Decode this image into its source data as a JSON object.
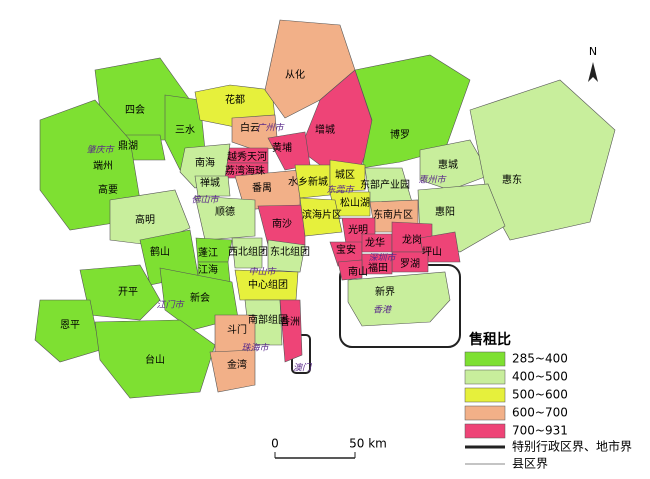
{
  "regions": [
    {
      "name": "四会",
      "class": 0
    },
    {
      "name": "鼎湖",
      "class": 0
    },
    {
      "name": "端州",
      "class": 0
    },
    {
      "name": "高要",
      "class": 0
    },
    {
      "name": "三水",
      "class": 0
    },
    {
      "name": "花都",
      "class": 2
    },
    {
      "name": "从化",
      "class": 3
    },
    {
      "name": "增城",
      "class": 4
    },
    {
      "name": "白云",
      "class": 3
    },
    {
      "name": "黄埔",
      "class": 4
    },
    {
      "name": "越秀天河",
      "class": 4
    },
    {
      "name": "荔湾海珠",
      "class": 4
    },
    {
      "name": "番禺",
      "class": 3
    },
    {
      "name": "南沙",
      "class": 4
    },
    {
      "name": "南海",
      "class": 1
    },
    {
      "name": "禅城",
      "class": 1
    },
    {
      "name": "顺德",
      "class": 1
    },
    {
      "name": "高明",
      "class": 1
    },
    {
      "name": "鹤山",
      "class": 0
    },
    {
      "name": "蓬江",
      "class": 0
    },
    {
      "name": "江海",
      "class": 0
    },
    {
      "name": "西北组团",
      "class": 1
    },
    {
      "name": "东北组团",
      "class": 1
    },
    {
      "name": "中心组团",
      "class": 2
    },
    {
      "name": "南部组团",
      "class": 1
    },
    {
      "name": "开平",
      "class": 0
    },
    {
      "name": "新会",
      "class": 0
    },
    {
      "name": "恩平",
      "class": 0
    },
    {
      "name": "台山",
      "class": 0
    },
    {
      "name": "斗门",
      "class": 3
    },
    {
      "name": "金湾",
      "class": 3
    },
    {
      "name": "香洲",
      "class": 4
    },
    {
      "name": "博罗",
      "class": 0
    },
    {
      "name": "惠城",
      "class": 1
    },
    {
      "name": "惠东",
      "class": 1
    },
    {
      "name": "惠阳",
      "class": 1
    },
    {
      "name": "水乡新城",
      "class": 2
    },
    {
      "name": "城区",
      "class": 2
    },
    {
      "name": "东部产业园",
      "class": 1
    },
    {
      "name": "松山湖",
      "class": 2
    },
    {
      "name": "滨海片区",
      "class": 2
    },
    {
      "name": "东南片区",
      "class": 3
    },
    {
      "name": "光明",
      "class": 4
    },
    {
      "name": "宝安",
      "class": 4
    },
    {
      "name": "龙华",
      "class": 4
    },
    {
      "name": "龙岗",
      "class": 4
    },
    {
      "name": "坪山",
      "class": 4
    },
    {
      "name": "罗湖",
      "class": 4
    },
    {
      "name": "福田",
      "class": 4
    },
    {
      "name": "南山",
      "class": 4
    },
    {
      "name": "新界",
      "class": 1
    }
  ],
  "city_labels": [
    "肇庆市",
    "广州市",
    "佛山市",
    "中山市",
    "江门市",
    "珠海市",
    "惠州市",
    "东莞市",
    "深圳市",
    "澳门",
    "香港"
  ],
  "legend": {
    "title": "售租比",
    "classes": [
      {
        "label": "285~400",
        "color": "#7ee032"
      },
      {
        "label": "400~500",
        "color": "#c8ee9c"
      },
      {
        "label": "500~600",
        "color": "#e6f03c"
      },
      {
        "label": "600~700",
        "color": "#f2b088"
      },
      {
        "label": "700~931",
        "color": "#ee4477"
      }
    ],
    "boundaries": [
      "特别行政区界、地市界",
      "县区界"
    ]
  },
  "scale": [
    "0",
    "50 km"
  ],
  "north": "N"
}
